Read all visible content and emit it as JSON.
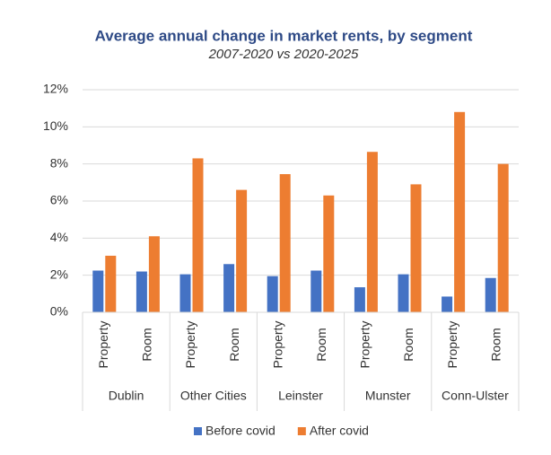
{
  "chart_data": {
    "type": "bar",
    "title": "Average annual change in market rents, by segment",
    "subtitle": "2007-2020 vs 2020-2025",
    "categories": [
      "Property",
      "Room",
      "Property",
      "Room",
      "Property",
      "Room",
      "Property",
      "Room",
      "Property",
      "Room"
    ],
    "groups": [
      "Dublin",
      "Other Cities",
      "Leinster",
      "Munster",
      "Conn-Ulster"
    ],
    "series": [
      {
        "name": "Before covid",
        "color": "#4472c4",
        "values": [
          2.25,
          2.2,
          2.05,
          2.6,
          1.95,
          2.25,
          1.35,
          2.05,
          0.85,
          1.85
        ]
      },
      {
        "name": "After covid",
        "color": "#ed7d31",
        "values": [
          3.05,
          4.1,
          8.3,
          6.6,
          7.45,
          6.3,
          8.65,
          6.9,
          10.8,
          8.0
        ]
      }
    ],
    "ylim": [
      0,
      12
    ],
    "yticks": [
      {
        "value": 0,
        "label": "0%"
      },
      {
        "value": 2,
        "label": "2%"
      },
      {
        "value": 4,
        "label": "4%"
      },
      {
        "value": 6,
        "label": "6%"
      },
      {
        "value": 8,
        "label": "8%"
      },
      {
        "value": 10,
        "label": "10%"
      },
      {
        "value": 12,
        "label": "12%"
      }
    ],
    "grid": true,
    "legend": "bottom"
  }
}
